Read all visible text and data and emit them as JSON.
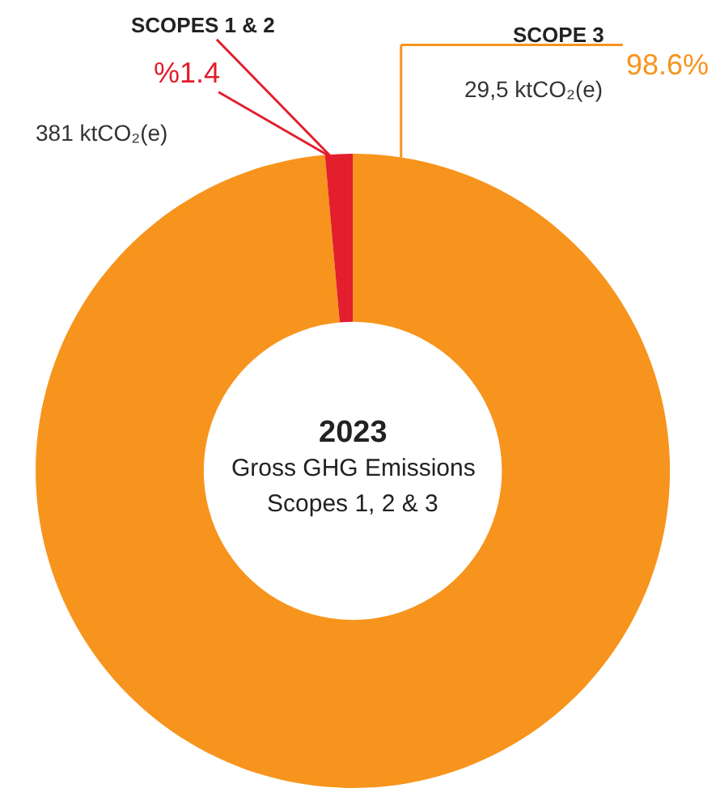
{
  "chart_data": {
    "type": "donut",
    "title": "2023",
    "categories": [
      "SCOPE 3",
      "SCOPES 1 & 2"
    ],
    "values": [
      98.6,
      1.4
    ],
    "colors": [
      "#f7941d",
      "#e31e2d"
    ],
    "value_labels": [
      "98.6%",
      "%1.4"
    ],
    "annotations": [
      "29,5 ktCO₂(e)",
      "381 ktCO₂(e)",
      "Gross GHG Emissions",
      "Scopes 1, 2 & 3"
    ],
    "legend": false
  }
}
